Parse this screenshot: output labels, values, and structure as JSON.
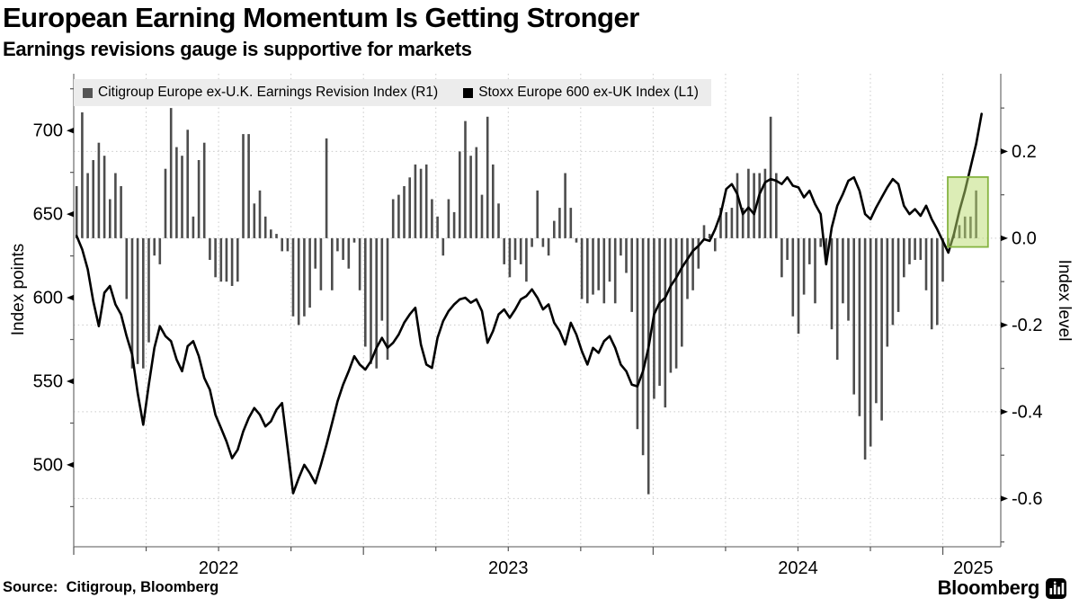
{
  "page": {
    "title": "European Earning Momentum Is Getting Stronger",
    "subtitle": "Earnings revisions gauge is supportive for markets",
    "source": "Source:  Citigroup, Bloomberg",
    "brand": "Bloomberg"
  },
  "legend": {
    "items": [
      {
        "label": "Citigroup Europe ex-U.K. Earnings Revision Index (R1)",
        "color": "#555555"
      },
      {
        "label": "Stoxx Europe 600 ex-UK Index (L1)",
        "color": "#000000"
      }
    ]
  },
  "chart_data": {
    "type": "mixed",
    "title": "European Earning Momentum Is Getting Stronger",
    "subtitle": "Earnings revisions gauge is supportive for markets",
    "x_start": 2022.01,
    "x_step_years": 0.0191656,
    "x_axis": {
      "range": [
        2022.0,
        2025.2
      ],
      "gridline_step": 0.25,
      "ticks": [
        {
          "label": "2022",
          "t": 2022.5
        },
        {
          "label": "2023",
          "t": 2023.5
        },
        {
          "label": "2024",
          "t": 2024.5
        },
        {
          "label": "2025",
          "t": 2025.105
        }
      ]
    },
    "left_axis": {
      "label": "Index points",
      "range": [
        451,
        734
      ],
      "ticks": [
        500,
        550,
        600,
        650,
        700
      ],
      "minor_step": 25
    },
    "right_axis": {
      "label": "Index level",
      "range": [
        -0.711,
        0.379
      ],
      "ticks": [
        0.2,
        0.0,
        -0.2,
        -0.4,
        -0.6
      ],
      "tick_labels": [
        "0.2",
        "0.0",
        "-0.2",
        "-0.4",
        "-0.6"
      ],
      "minor_step": 0.1
    },
    "grid": {
      "color": "#c9c9c9",
      "dotted": true
    },
    "highlight_box": {
      "t0": 2025.017,
      "t1": 2025.156,
      "v0": -0.02,
      "v1": 0.141,
      "fill": "#b9dc6e",
      "fill_opacity": 0.5,
      "border": "#86b441"
    },
    "series": [
      {
        "name": "Citigroup Europe ex-U.K. Earnings Revision Index (R1)",
        "type": "bar",
        "axis": "right",
        "color": "#4d4d4d",
        "values": [
          0.12,
          0.29,
          0.15,
          0.18,
          0.22,
          0.19,
          0.09,
          0.15,
          0.12,
          -0.14,
          -0.3,
          -0.29,
          -0.3,
          -0.24,
          -0.04,
          -0.06,
          0.16,
          0.3,
          0.21,
          0.19,
          0.25,
          0.05,
          0.18,
          0.22,
          -0.05,
          -0.09,
          -0.1,
          -0.1,
          -0.11,
          -0.1,
          0.24,
          0.24,
          0.08,
          0.11,
          0.05,
          0.02,
          0.01,
          -0.03,
          -0.03,
          -0.18,
          -0.2,
          -0.18,
          -0.16,
          -0.07,
          -0.12,
          0.23,
          -0.12,
          -0.03,
          -0.05,
          -0.07,
          -0.01,
          -0.12,
          -0.25,
          -0.29,
          -0.3,
          -0.19,
          -0.28,
          0.09,
          0.1,
          0.12,
          0.14,
          0.17,
          0.16,
          0.17,
          0.09,
          0.05,
          -0.04,
          0.09,
          0.06,
          0.2,
          0.27,
          0.19,
          0.21,
          0.1,
          0.28,
          0.17,
          0.08,
          -0.06,
          -0.09,
          -0.05,
          -0.06,
          -0.1,
          -0.02,
          0.11,
          -0.02,
          -0.04,
          0.04,
          0.07,
          0.15,
          0.07,
          -0.01,
          -0.14,
          -0.15,
          -0.13,
          -0.12,
          -0.15,
          -0.1,
          -0.15,
          -0.04,
          -0.08,
          -0.17,
          -0.44,
          -0.5,
          -0.59,
          -0.37,
          -0.34,
          -0.39,
          -0.31,
          -0.3,
          -0.25,
          -0.14,
          -0.12,
          -0.07,
          0.03,
          0.01,
          -0.03,
          0.07,
          0.06,
          0.07,
          0.15,
          0.07,
          0.16,
          0.15,
          0.15,
          0.16,
          0.28,
          0.15,
          -0.09,
          -0.05,
          -0.18,
          -0.22,
          -0.13,
          -0.06,
          -0.15,
          -0.02,
          -0.05,
          -0.21,
          -0.28,
          -0.15,
          -0.19,
          -0.36,
          -0.41,
          -0.51,
          -0.48,
          -0.38,
          -0.42,
          -0.25,
          -0.2,
          -0.17,
          -0.09,
          -0.06,
          -0.05,
          -0.05,
          -0.12,
          -0.21,
          -0.2,
          -0.1,
          -0.02,
          0.01,
          0.03,
          0.05,
          0.05,
          0.11
        ]
      },
      {
        "name": "Stoxx Europe 600 ex-UK Index (L1)",
        "type": "line",
        "axis": "left",
        "color": "#000000",
        "values": [
          637,
          629,
          617,
          598,
          583,
          603,
          607,
          596,
          590,
          577,
          566,
          543,
          524,
          548,
          570,
          583,
          577,
          574,
          563,
          556,
          571,
          574,
          565,
          552,
          545,
          530,
          522,
          514,
          504,
          509,
          520,
          528,
          534,
          530,
          523,
          526,
          533,
          537,
          510,
          483,
          492,
          500,
          495,
          489,
          500,
          512,
          525,
          538,
          548,
          556,
          565,
          560,
          557,
          562,
          570,
          576,
          570,
          573,
          578,
          585,
          590,
          594,
          572,
          560,
          558,
          576,
          586,
          592,
          596,
          599,
          600,
          597,
          599,
          592,
          573,
          580,
          590,
          593,
          588,
          593,
          599,
          601,
          605,
          600,
          593,
          596,
          585,
          580,
          572,
          585,
          578,
          568,
          560,
          570,
          567,
          574,
          577,
          570,
          560,
          556,
          548,
          547,
          556,
          570,
          590,
          597,
          600,
          607,
          612,
          618,
          623,
          628,
          631,
          635,
          634,
          641,
          650,
          665,
          668,
          662,
          650,
          654,
          650,
          662,
          669,
          671,
          670,
          668,
          672,
          667,
          666,
          660,
          664,
          656,
          650,
          620,
          642,
          655,
          662,
          670,
          672,
          664,
          650,
          647,
          654,
          660,
          666,
          671,
          668,
          655,
          650,
          653,
          649,
          655,
          647,
          641,
          634,
          627,
          638,
          652,
          664,
          678,
          692,
          710
        ]
      }
    ]
  }
}
